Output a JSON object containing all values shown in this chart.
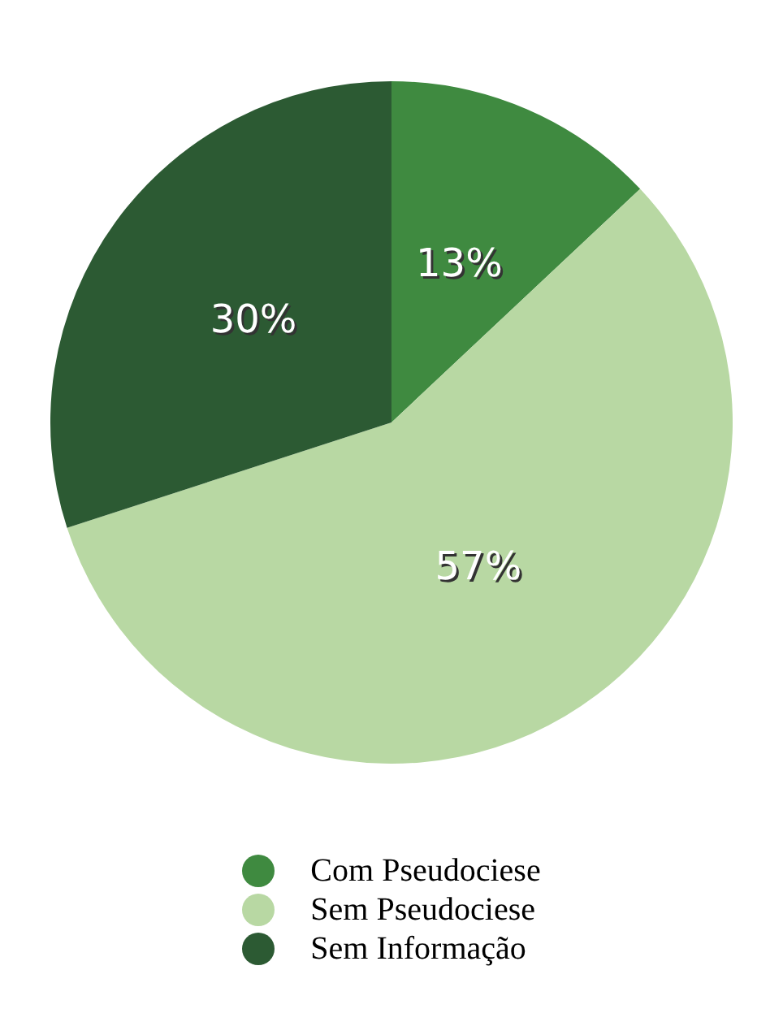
{
  "chart_data": {
    "type": "pie",
    "categories": [
      "Com Pseudociese",
      "Sem Pseudociese",
      "Sem Informação"
    ],
    "values": [
      13,
      57,
      30
    ],
    "colors": [
      "#3f8a40",
      "#b8d8a3",
      "#2c5a33"
    ],
    "value_labels": [
      "13%",
      "57%",
      "30%"
    ],
    "legend": "bottom"
  }
}
